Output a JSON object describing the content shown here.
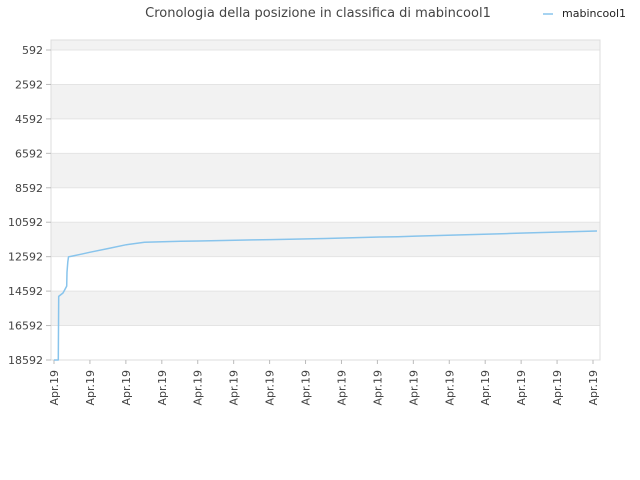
{
  "chart_data": {
    "type": "line",
    "title": "Cronologia della posizione in classifica di mabincool1",
    "xlabel": "",
    "ylabel": "",
    "y_inverted": true,
    "ylim": [
      18592,
      592
    ],
    "y_ticks": [
      592,
      2592,
      4592,
      6592,
      8592,
      10592,
      12592,
      14592,
      16592,
      18592
    ],
    "x_ticks": [
      "Apr.19",
      "Apr.19",
      "Apr.19",
      "Apr.19",
      "Apr.19",
      "Apr.19",
      "Apr.19",
      "Apr.19",
      "Apr.19",
      "Apr.19",
      "Apr.19",
      "Apr.19",
      "Apr.19",
      "Apr.19",
      "Apr.19",
      "Apr.19"
    ],
    "grid": true,
    "band_colors": [
      "#f2f2f2",
      "#ffffff"
    ],
    "legend_position": "top-right",
    "series": [
      {
        "name": "mabincool1",
        "color": "#88c4ec",
        "x": [
          0.0,
          0.12,
          0.13,
          0.25,
          0.3,
          0.35,
          0.36,
          0.38,
          0.4,
          0.5,
          0.75,
          1.0,
          1.5,
          2.0,
          2.5,
          3.0,
          3.5,
          4.0,
          4.5,
          5.0,
          5.5,
          6.0,
          6.5,
          7.0,
          7.5,
          8.0,
          8.5,
          9.0,
          9.5,
          10.0,
          10.5,
          11.0,
          11.5,
          12.0,
          12.5,
          13.0,
          13.5,
          14.0,
          14.5,
          15.0
        ],
        "y": [
          18592,
          18592,
          14900,
          14700,
          14500,
          14300,
          13500,
          12900,
          12600,
          12560,
          12450,
          12330,
          12120,
          11900,
          11750,
          11730,
          11700,
          11680,
          11660,
          11640,
          11620,
          11600,
          11580,
          11560,
          11540,
          11510,
          11480,
          11450,
          11430,
          11400,
          11370,
          11340,
          11310,
          11280,
          11250,
          11220,
          11190,
          11160,
          11130,
          11100
        ]
      }
    ]
  }
}
